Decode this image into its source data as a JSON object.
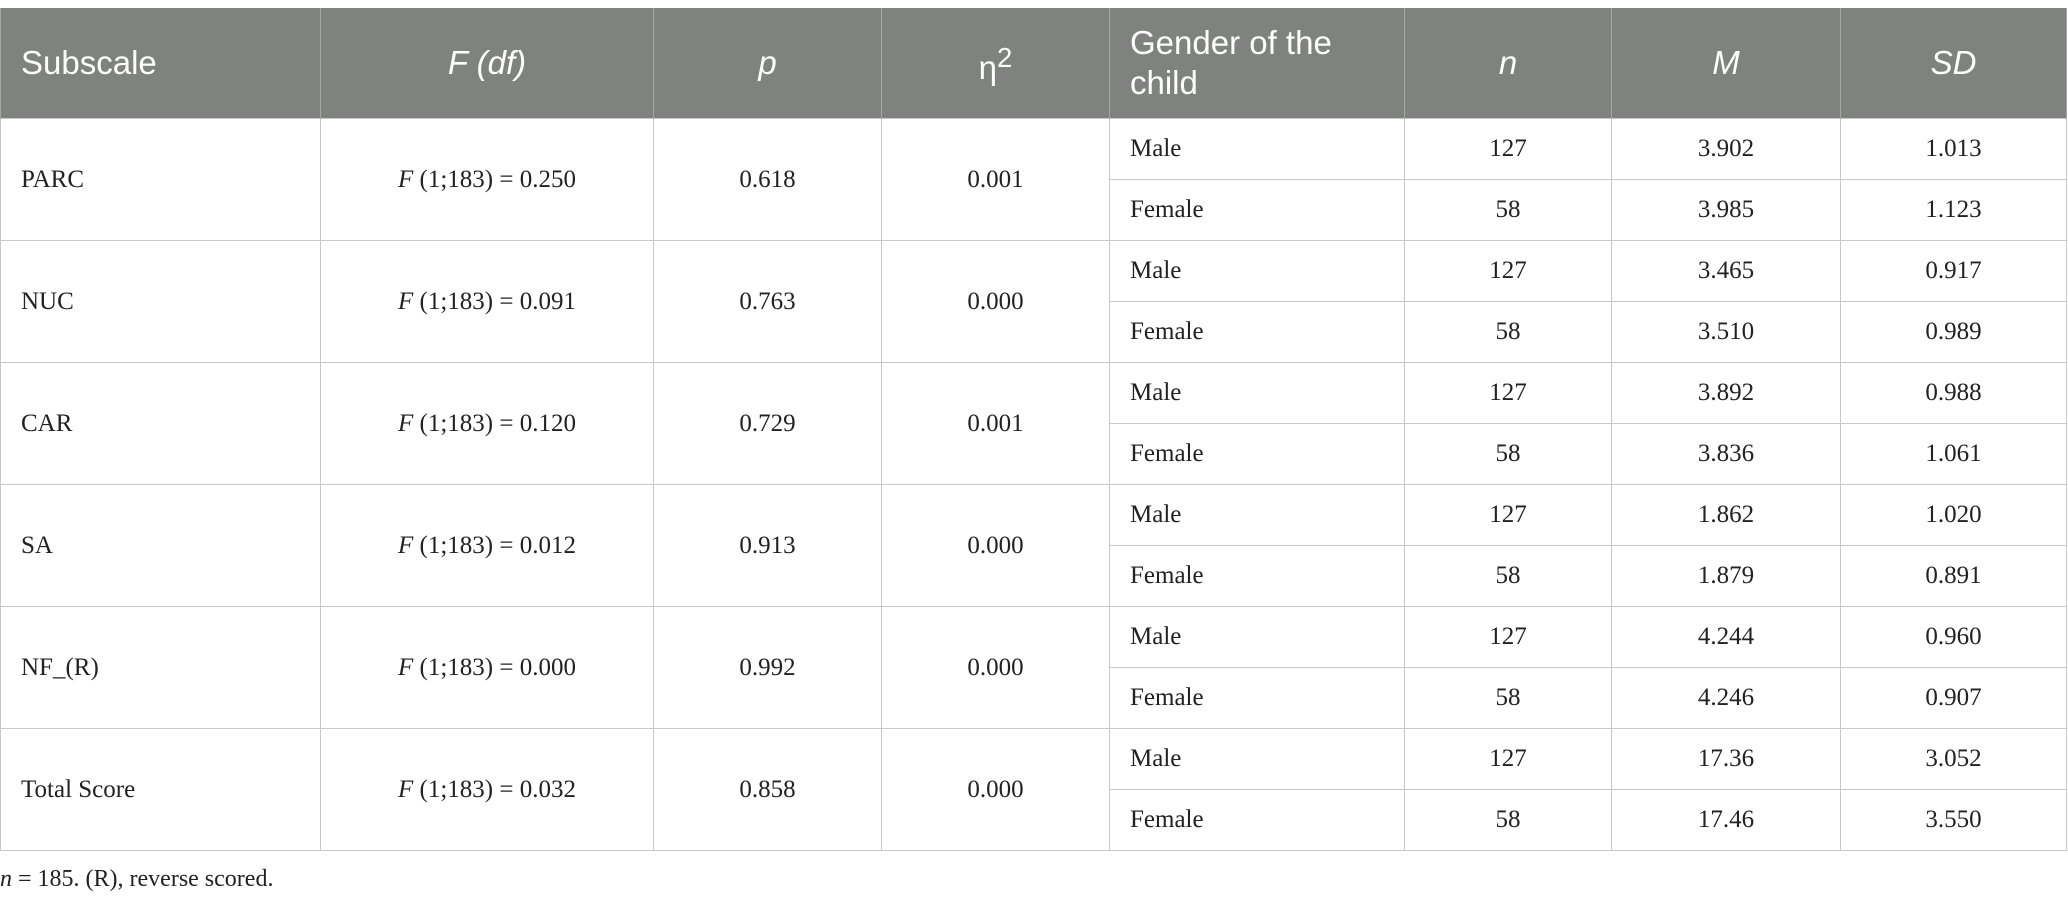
{
  "headers": {
    "subscale": "Subscale",
    "f_df": "F (df)",
    "p": "p",
    "eta": "η",
    "eta_sup": "2",
    "gender": "Gender of the child",
    "n": "n",
    "m": "M",
    "sd": "SD"
  },
  "rows": [
    {
      "subscale": "PARC",
      "f_label": "F",
      "f_rest": " (1;183) = 0.250",
      "p": "0.618",
      "eta2": "0.001",
      "male": {
        "label": "Male",
        "n": "127",
        "m": "3.902",
        "sd": "1.013"
      },
      "female": {
        "label": "Female",
        "n": "58",
        "m": "3.985",
        "sd": "1.123"
      }
    },
    {
      "subscale": "NUC",
      "f_label": "F",
      "f_rest": " (1;183) = 0.091",
      "p": "0.763",
      "eta2": "0.000",
      "male": {
        "label": "Male",
        "n": "127",
        "m": "3.465",
        "sd": "0.917"
      },
      "female": {
        "label": "Female",
        "n": "58",
        "m": "3.510",
        "sd": "0.989"
      }
    },
    {
      "subscale": "CAR",
      "f_label": "F",
      "f_rest": " (1;183) = 0.120",
      "p": "0.729",
      "eta2": "0.001",
      "male": {
        "label": "Male",
        "n": "127",
        "m": "3.892",
        "sd": "0.988"
      },
      "female": {
        "label": "Female",
        "n": "58",
        "m": "3.836",
        "sd": "1.061"
      }
    },
    {
      "subscale": "SA",
      "f_label": "F",
      "f_rest": " (1;183) = 0.012",
      "p": "0.913",
      "eta2": "0.000",
      "male": {
        "label": "Male",
        "n": "127",
        "m": "1.862",
        "sd": "1.020"
      },
      "female": {
        "label": "Female",
        "n": "58",
        "m": "1.879",
        "sd": "0.891"
      }
    },
    {
      "subscale": "NF_(R)",
      "f_label": "F",
      "f_rest": " (1;183) = 0.000",
      "p": "0.992",
      "eta2": "0.000",
      "male": {
        "label": "Male",
        "n": "127",
        "m": "4.244",
        "sd": "0.960"
      },
      "female": {
        "label": "Female",
        "n": "58",
        "m": "4.246",
        "sd": "0.907"
      }
    },
    {
      "subscale": "Total Score",
      "f_label": "F",
      "f_rest": " (1;183) = 0.032",
      "p": "0.858",
      "eta2": "0.000",
      "male": {
        "label": "Male",
        "n": "127",
        "m": "17.36",
        "sd": "3.052"
      },
      "female": {
        "label": "Female",
        "n": "58",
        "m": "17.46",
        "sd": "3.550"
      }
    }
  ],
  "footnote": {
    "n_label": "n",
    "text": " = 185. (R), reverse scored."
  }
}
